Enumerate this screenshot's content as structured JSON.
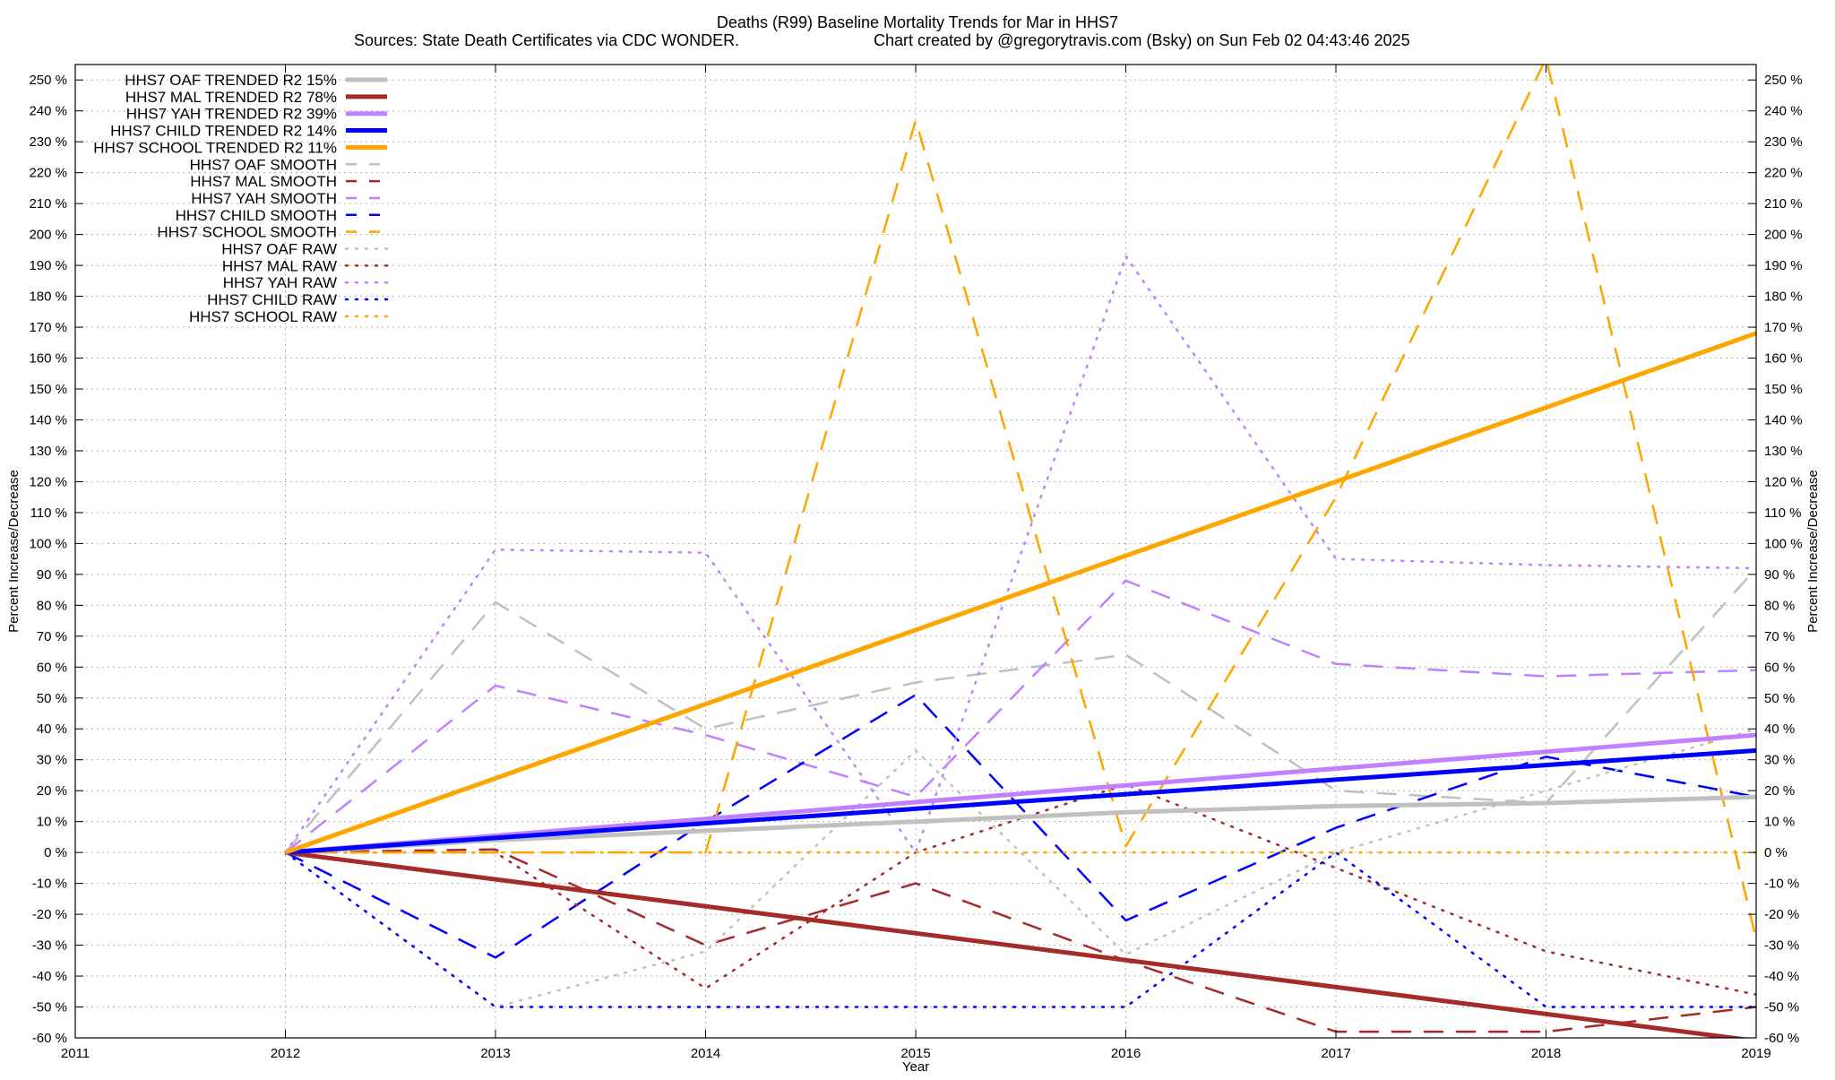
{
  "title": {
    "line1": "Deaths (R99)  Baseline Mortality Trends for Mar in HHS7",
    "line2_left": "Sources: State Death Certificates via CDC WONDER.",
    "line2_right": "Chart created by @gregorytravis.com (Bsky) on Sun Feb 02 04:43:46 2025"
  },
  "chart_data": {
    "type": "line",
    "title": "Deaths (R99)  Baseline Mortality Trends for Mar in HHS7",
    "xlabel": "Year",
    "ylabel": "Percent Increase/Decrease",
    "y2label": "Percent Increase/Decrease",
    "xlim": [
      2011,
      2019
    ],
    "ylim": [
      -60,
      255
    ],
    "x_ticks": [
      2011,
      2012,
      2013,
      2014,
      2015,
      2016,
      2017,
      2018,
      2019
    ],
    "y_ticks": [
      -60,
      -50,
      -40,
      -30,
      -20,
      -10,
      0,
      10,
      20,
      30,
      40,
      50,
      60,
      70,
      80,
      90,
      100,
      110,
      120,
      130,
      140,
      150,
      160,
      170,
      180,
      190,
      200,
      210,
      220,
      230,
      240,
      250
    ],
    "y_tick_suffix": " %",
    "grid": true,
    "legend_position": "top-left",
    "series": [
      {
        "name": "HHS7 OAF TRENDED R2  15%",
        "style": "solid",
        "color": "#c0c0c0",
        "width": 5,
        "x": [
          2012,
          2013,
          2014,
          2015,
          2016,
          2017,
          2018,
          2019
        ],
        "values": [
          0,
          4,
          7,
          10,
          13,
          15,
          16,
          18
        ]
      },
      {
        "name": "HHS7 MAL TRENDED R2  78%",
        "style": "solid",
        "color": "#a52a2a",
        "width": 5,
        "x": [
          2012,
          2019
        ],
        "values": [
          0,
          -61
        ]
      },
      {
        "name": "HHS7 YAH TRENDED R2  39%",
        "style": "solid",
        "color": "#c080ff",
        "width": 5,
        "x": [
          2012,
          2019
        ],
        "values": [
          0,
          38
        ]
      },
      {
        "name": "HHS7 CHILD TRENDED R2  14%",
        "style": "solid",
        "color": "#0000ff",
        "width": 5,
        "x": [
          2012,
          2019
        ],
        "values": [
          0,
          33
        ]
      },
      {
        "name": "HHS7 SCHOOL TRENDED R2  11%",
        "style": "solid",
        "color": "#ffa500",
        "width": 5,
        "x": [
          2012,
          2019
        ],
        "values": [
          0,
          168
        ]
      },
      {
        "name": "HHS7 OAF SMOOTH",
        "style": "dashed",
        "color": "#c0c0c0",
        "width": 2.5,
        "x": [
          2012,
          2013,
          2014,
          2015,
          2016,
          2017,
          2018,
          2019
        ],
        "values": [
          0,
          81,
          40,
          55,
          64,
          20,
          16,
          92
        ]
      },
      {
        "name": "HHS7 MAL SMOOTH",
        "style": "dashed",
        "color": "#a52a2a",
        "width": 2.5,
        "x": [
          2012,
          2013,
          2014,
          2015,
          2016,
          2017,
          2018,
          2019
        ],
        "values": [
          0,
          1,
          -30,
          -10,
          -35,
          -58,
          -58,
          -50
        ]
      },
      {
        "name": "HHS7 YAH SMOOTH",
        "style": "dashed",
        "color": "#c080ff",
        "width": 2.5,
        "x": [
          2012,
          2013,
          2014,
          2015,
          2016,
          2017,
          2018,
          2019
        ],
        "values": [
          0,
          54,
          38,
          18,
          88,
          61,
          57,
          59
        ]
      },
      {
        "name": "HHS7 CHILD SMOOTH",
        "style": "dashed",
        "color": "#0000ff",
        "width": 2.5,
        "x": [
          2012,
          2013,
          2014,
          2015,
          2016,
          2017,
          2018,
          2019
        ],
        "values": [
          0,
          -34,
          10,
          51,
          -22,
          8,
          31,
          18
        ]
      },
      {
        "name": "HHS7 SCHOOL SMOOTH",
        "style": "dashed",
        "color": "#ffa500",
        "width": 2.5,
        "x": [
          2012,
          2013,
          2014,
          2015,
          2016,
          2017,
          2018,
          2019
        ],
        "values": [
          0,
          0,
          0,
          237,
          2,
          115,
          257,
          -28
        ]
      },
      {
        "name": "HHS7 OAF RAW",
        "style": "dotted",
        "color": "#c0c0c0",
        "width": 2.5,
        "x": [
          2012,
          2013,
          2014,
          2015,
          2016,
          2017,
          2018,
          2019
        ],
        "values": [
          0,
          -50,
          -32,
          33,
          -33,
          0,
          20,
          40
        ]
      },
      {
        "name": "HHS7 MAL RAW",
        "style": "dotted",
        "color": "#a52a2a",
        "width": 2.5,
        "x": [
          2012,
          2013,
          2014,
          2015,
          2016,
          2017,
          2018,
          2019
        ],
        "values": [
          0,
          0,
          -44,
          0,
          22,
          -5,
          -32,
          -46
        ]
      },
      {
        "name": "HHS7 YAH RAW",
        "style": "dotted",
        "color": "#c080ff",
        "width": 2.5,
        "x": [
          2012,
          2013,
          2014,
          2015,
          2016,
          2017,
          2018,
          2019
        ],
        "values": [
          0,
          98,
          97,
          0,
          193,
          95,
          93,
          92
        ]
      },
      {
        "name": "HHS7 CHILD RAW",
        "style": "dotted",
        "color": "#0000ff",
        "width": 2.5,
        "x": [
          2012,
          2013,
          2014,
          2015,
          2016,
          2017,
          2018,
          2019
        ],
        "values": [
          0,
          -50,
          -50,
          -50,
          -50,
          0,
          -50,
          -50
        ]
      },
      {
        "name": "HHS7 SCHOOL RAW",
        "style": "dotted",
        "color": "#ffa500",
        "width": 2.5,
        "x": [
          2012,
          2013,
          2014,
          2015,
          2016,
          2017,
          2018,
          2019
        ],
        "values": [
          0,
          0,
          0,
          0,
          0,
          0,
          0,
          0
        ]
      }
    ]
  }
}
